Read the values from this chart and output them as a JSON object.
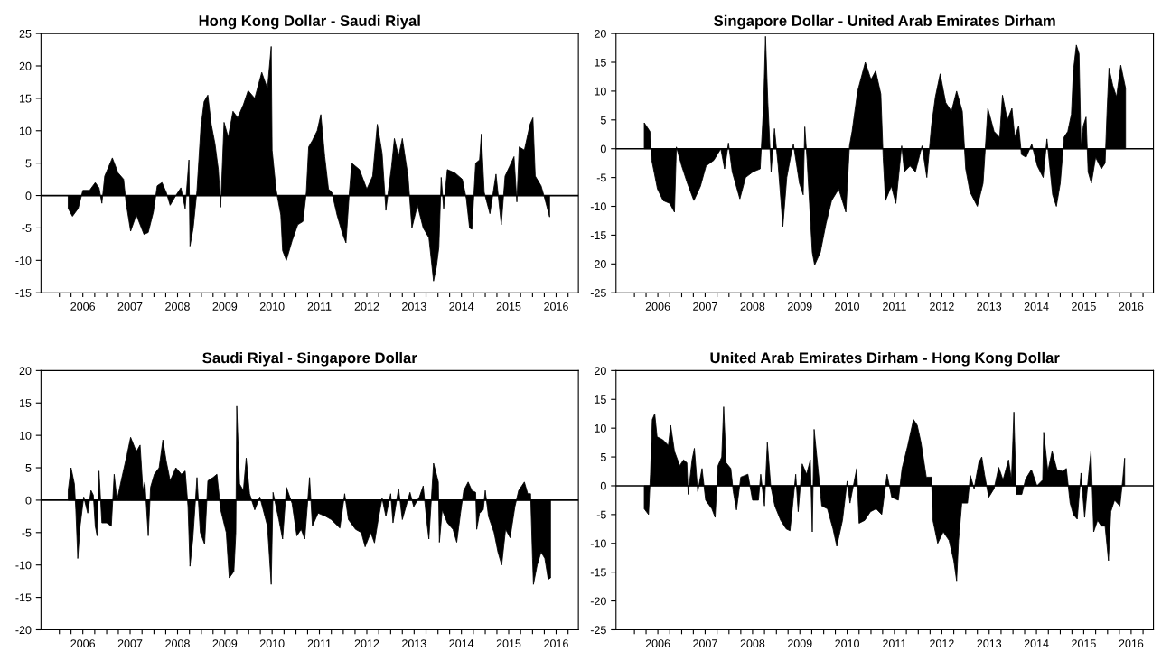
{
  "chart_data": [
    {
      "type": "area",
      "title": "Hong Kong Dollar - Saudi Riyal",
      "xlim": [
        "2005-08-12",
        "2016-12-20"
      ],
      "xticks": [
        {
          "value": "2006-01-01",
          "label": null
        },
        {
          "value": "2006-04-01",
          "label": null
        },
        {
          "value": "2006-07-01",
          "label": "2006"
        },
        {
          "value": "2006-10-01",
          "label": null
        },
        {
          "value": "2007-01-01",
          "label": null
        },
        {
          "value": "2007-04-01",
          "label": null
        },
        {
          "value": "2007-07-01",
          "label": "2007"
        },
        {
          "value": "2007-10-01",
          "label": null
        },
        {
          "value": "2008-01-01",
          "label": null
        },
        {
          "value": "2008-04-01",
          "label": null
        },
        {
          "value": "2008-07-01",
          "label": "2008"
        },
        {
          "value": "2008-10-01",
          "label": null
        },
        {
          "value": "2009-01-01",
          "label": null
        },
        {
          "value": "2009-04-01",
          "label": null
        },
        {
          "value": "2009-07-01",
          "label": "2009"
        },
        {
          "value": "2009-10-01",
          "label": null
        },
        {
          "value": "2010-01-01",
          "label": null
        },
        {
          "value": "2010-04-01",
          "label": null
        },
        {
          "value": "2010-07-01",
          "label": "2010"
        },
        {
          "value": "2010-10-01",
          "label": null
        },
        {
          "value": "2011-01-01",
          "label": null
        },
        {
          "value": "2011-04-01",
          "label": null
        },
        {
          "value": "2011-07-01",
          "label": "2011"
        },
        {
          "value": "2011-10-01",
          "label": null
        },
        {
          "value": "2012-01-01",
          "label": null
        },
        {
          "value": "2012-04-01",
          "label": null
        },
        {
          "value": "2012-07-01",
          "label": "2012"
        },
        {
          "value": "2012-10-01",
          "label": null
        },
        {
          "value": "2013-01-01",
          "label": null
        },
        {
          "value": "2013-04-01",
          "label": null
        },
        {
          "value": "2013-07-01",
          "label": "2013"
        },
        {
          "value": "2013-10-01",
          "label": null
        },
        {
          "value": "2014-01-01",
          "label": null
        },
        {
          "value": "2014-04-01",
          "label": null
        },
        {
          "value": "2014-07-01",
          "label": "2014"
        },
        {
          "value": "2014-10-01",
          "label": null
        },
        {
          "value": "2015-01-01",
          "label": null
        },
        {
          "value": "2015-04-01",
          "label": null
        },
        {
          "value": "2015-07-01",
          "label": "2015"
        },
        {
          "value": "2015-10-01",
          "label": null
        },
        {
          "value": "2016-01-01",
          "label": null
        },
        {
          "value": "2016-04-01",
          "label": null
        },
        {
          "value": "2016-07-01",
          "label": "2016"
        },
        {
          "value": "2016-10-01",
          "label": null
        }
      ],
      "ylim": [
        -15,
        25
      ],
      "yticks": [
        -15,
        -10,
        -5,
        0,
        5,
        10,
        15,
        20,
        25
      ],
      "grid": false,
      "legend": false,
      "ref_lines": [
        {
          "axis": "y",
          "value": 0
        }
      ],
      "series": [
        {
          "color": "#000000",
          "x": [
            "2006-03-10",
            "2006-04-12",
            "2006-05-26",
            "2006-07-01",
            "2006-08-22",
            "2006-10-05",
            "2006-11-03",
            "2006-11-25",
            "2006-12-17",
            "2007-02-14",
            "2007-03-30",
            "2007-05-12",
            "2007-05-30",
            "2007-07-05",
            "2007-08-18",
            "2007-10-16",
            "2007-11-18",
            "2007-12-28",
            "2008-01-26",
            "2008-03-03",
            "2008-04-05",
            "2008-05-05",
            "2008-06-18",
            "2008-07-27",
            "2008-08-29",
            "2008-09-27",
            "2008-10-05",
            "2008-10-30",
            "2008-11-28",
            "2008-12-28",
            "2009-01-22",
            "2009-02-20",
            "2009-03-18",
            "2009-04-16",
            "2009-05-12",
            "2009-05-30",
            "2009-06-25",
            "2009-07-27",
            "2009-09-02",
            "2009-10-08",
            "2009-11-21",
            "2009-12-28",
            "2010-02-17",
            "2010-04-12",
            "2010-05-26",
            "2010-06-24",
            "2010-07-01",
            "2010-07-31",
            "2010-09-06",
            "2010-09-20",
            "2010-10-19",
            "2010-12-02",
            "2011-01-15",
            "2011-02-24",
            "2011-03-22",
            "2011-04-09",
            "2011-05-08",
            "2011-06-14",
            "2011-07-12",
            "2011-08-11",
            "2011-09-09",
            "2011-10-05",
            "2011-11-14",
            "2011-12-28",
            "2012-01-22",
            "2012-02-17",
            "2012-03-07",
            "2012-05-05",
            "2012-07-01",
            "2012-08-15",
            "2012-09-20",
            "2012-10-27",
            "2012-11-25",
            "2013-01-08",
            "2013-01-30",
            "2013-03-03",
            "2013-04-01",
            "2013-05-15",
            "2013-06-14",
            "2013-07-27",
            "2013-09-09",
            "2013-10-23",
            "2013-11-28",
            "2013-12-20",
            "2014-01-08",
            "2014-01-26",
            "2014-02-14",
            "2014-03-14",
            "2014-05-12",
            "2014-07-08",
            "2014-08-08",
            "2014-09-02",
            "2014-09-20",
            "2014-10-19",
            "2014-11-18",
            "2014-12-02",
            "2014-12-24",
            "2015-02-06",
            "2015-03-25",
            "2015-05-05",
            "2015-06-03",
            "2015-07-08",
            "2015-08-11",
            "2015-09-02",
            "2015-09-20",
            "2015-10-30",
            "2015-12-13",
            "2016-01-04",
            "2016-01-22",
            "2016-03-07",
            "2016-04-05",
            "2016-05-12"
          ],
          "values": [
            -2,
            -3.2,
            -2,
            0.8,
            0.8,
            2,
            1.2,
            -1.2,
            3,
            5.8,
            3.5,
            2.5,
            -1,
            -5.5,
            -3,
            -6,
            -5.7,
            -2.5,
            1.5,
            2,
            0.5,
            -1.5,
            0,
            1.2,
            -2,
            5.5,
            -7.8,
            -5,
            0.8,
            10.5,
            14.5,
            15.5,
            11,
            8,
            4,
            -1.8,
            11.3,
            9,
            13,
            12,
            14,
            16.2,
            15,
            19,
            16.5,
            23,
            7,
            1,
            -3,
            -8.5,
            -10,
            -7,
            -4.5,
            -4,
            0.5,
            7.5,
            8.5,
            10,
            12.5,
            6,
            1,
            0.5,
            -3,
            -6,
            -7.3,
            0.5,
            5,
            4,
            1,
            3,
            11,
            6.5,
            -2.3,
            4.5,
            8.8,
            6,
            8.8,
            3,
            -5,
            -1.5,
            -5,
            -6.5,
            -13.2,
            -11,
            -8,
            2.8,
            -2,
            4,
            3.5,
            2.5,
            -0.5,
            -5,
            -5.2,
            5,
            5.5,
            9.5,
            0.5,
            -2.8,
            3.3,
            -4.5,
            3,
            4.5,
            6,
            -1,
            7.5,
            7,
            11,
            12,
            3,
            1.5,
            -0.5,
            -3.3
          ]
        }
      ]
    },
    {
      "type": "area",
      "title": "Singapore Dollar - United Arab Emirates Dirham",
      "xlim": [
        "2005-08-12",
        "2016-12-20"
      ],
      "xticks": [
        {
          "value": "2006-01-01",
          "label": null
        },
        {
          "value": "2006-04-01",
          "label": null
        },
        {
          "value": "2006-07-01",
          "label": "2006"
        },
        {
          "value": "2006-10-01",
          "label": null
        },
        {
          "value": "2007-01-01",
          "label": null
        },
        {
          "value": "2007-04-01",
          "label": null
        },
        {
          "value": "2007-07-01",
          "label": "2007"
        },
        {
          "value": "2007-10-01",
          "label": null
        },
        {
          "value": "2008-01-01",
          "label": null
        },
        {
          "value": "2008-04-01",
          "label": null
        },
        {
          "value": "2008-07-01",
          "label": "2008"
        },
        {
          "value": "2008-10-01",
          "label": null
        },
        {
          "value": "2009-01-01",
          "label": null
        },
        {
          "value": "2009-04-01",
          "label": null
        },
        {
          "value": "2009-07-01",
          "label": "2009"
        },
        {
          "value": "2009-10-01",
          "label": null
        },
        {
          "value": "2010-01-01",
          "label": null
        },
        {
          "value": "2010-04-01",
          "label": null
        },
        {
          "value": "2010-07-01",
          "label": "2010"
        },
        {
          "value": "2010-10-01",
          "label": null
        },
        {
          "value": "2011-01-01",
          "label": null
        },
        {
          "value": "2011-04-01",
          "label": null
        },
        {
          "value": "2011-07-01",
          "label": "2011"
        },
        {
          "value": "2011-10-01",
          "label": null
        },
        {
          "value": "2012-01-01",
          "label": null
        },
        {
          "value": "2012-04-01",
          "label": null
        },
        {
          "value": "2012-07-01",
          "label": "2012"
        },
        {
          "value": "2012-10-01",
          "label": null
        },
        {
          "value": "2013-01-01",
          "label": null
        },
        {
          "value": "2013-04-01",
          "label": null
        },
        {
          "value": "2013-07-01",
          "label": "2013"
        },
        {
          "value": "2013-10-01",
          "label": null
        },
        {
          "value": "2014-01-01",
          "label": null
        },
        {
          "value": "2014-04-01",
          "label": null
        },
        {
          "value": "2014-07-01",
          "label": "2014"
        },
        {
          "value": "2014-10-01",
          "label": null
        },
        {
          "value": "2015-01-01",
          "label": null
        },
        {
          "value": "2015-04-01",
          "label": null
        },
        {
          "value": "2015-07-01",
          "label": "2015"
        },
        {
          "value": "2015-10-01",
          "label": null
        },
        {
          "value": "2016-01-01",
          "label": null
        },
        {
          "value": "2016-04-01",
          "label": null
        },
        {
          "value": "2016-07-01",
          "label": "2016"
        },
        {
          "value": "2016-10-01",
          "label": null
        }
      ],
      "ylim": [
        -25,
        20
      ],
      "yticks": [
        -25,
        -20,
        -15,
        -10,
        -5,
        0,
        5,
        10,
        15,
        20
      ],
      "grid": false,
      "legend": false,
      "ref_lines": [
        {
          "axis": "y",
          "value": 0
        }
      ],
      "series": [
        {
          "color": "#000000",
          "x": [
            "2006-03-18",
            "2006-05-01",
            "2006-05-15",
            "2006-06-28",
            "2006-08-11",
            "2006-10-01",
            "2006-11-06",
            "2006-11-21",
            "2007-01-01",
            "2007-02-14",
            "2007-04-05",
            "2007-05-26",
            "2007-07-08",
            "2007-09-06",
            "2007-10-30",
            "2007-11-28",
            "2007-12-28",
            "2008-01-26",
            "2008-03-25",
            "2008-05-08",
            "2008-07-05",
            "2008-08-29",
            "2008-09-24",
            "2008-10-09",
            "2008-10-27",
            "2008-11-21",
            "2008-12-17",
            "2009-01-15",
            "2009-02-20",
            "2009-03-22",
            "2009-04-20",
            "2009-05-12",
            "2009-06-28",
            "2009-07-27",
            "2009-08-08",
            "2009-08-26",
            "2009-10-05",
            "2009-10-23",
            "2009-12-06",
            "2010-01-19",
            "2010-03-03",
            "2010-04-27",
            "2010-06-21",
            "2010-07-19",
            "2010-08-08",
            "2010-09-20",
            "2010-11-18",
            "2011-01-01",
            "2011-02-06",
            "2011-03-18",
            "2011-04-05",
            "2011-04-23",
            "2011-06-07",
            "2011-07-12",
            "2011-08-26",
            "2011-09-16",
            "2011-10-30",
            "2011-12-10",
            "2012-01-30",
            "2012-03-07",
            "2012-04-12",
            "2012-05-12",
            "2012-06-18",
            "2012-07-31",
            "2012-09-13",
            "2012-10-23",
            "2012-12-06",
            "2013-01-01",
            "2013-02-03",
            "2013-04-01",
            "2013-05-15",
            "2013-06-21",
            "2013-08-08",
            "2013-09-20",
            "2013-10-12",
            "2013-11-18",
            "2013-12-24",
            "2014-01-15",
            "2014-02-14",
            "2014-03-07",
            "2014-04-12",
            "2014-05-26",
            "2014-07-08",
            "2014-08-22",
            "2014-09-20",
            "2014-11-03",
            "2014-12-02",
            "2015-01-01",
            "2015-01-30",
            "2015-02-28",
            "2015-03-28",
            "2015-04-12",
            "2015-05-05",
            "2015-05-26",
            "2015-06-10",
            "2015-06-28",
            "2015-07-19",
            "2015-08-04",
            "2015-08-29",
            "2015-10-01",
            "2015-11-14",
            "2015-12-13",
            "2015-12-28",
            "2016-01-12",
            "2016-02-10",
            "2016-03-10",
            "2016-04-12",
            "2016-05-19"
          ],
          "values": [
            4.5,
            3,
            -2,
            -7,
            -9,
            -9.5,
            -11,
            0.3,
            -3,
            -6,
            -9,
            -6.5,
            -3,
            -2,
            0,
            -3.5,
            1,
            -4,
            -8.7,
            -5,
            -4,
            -3.5,
            7.5,
            19.5,
            8,
            -4,
            3.5,
            -3,
            -13.5,
            -5,
            -1.5,
            0.8,
            -6,
            -8,
            3.8,
            -2,
            -18,
            -20.2,
            -18,
            -13,
            -9,
            -7,
            -11,
            0.5,
            3,
            10,
            15,
            12,
            13.5,
            9.5,
            -1.5,
            -9,
            -6.5,
            -9.5,
            0.5,
            -4,
            -3,
            -4,
            0.5,
            -5,
            4,
            9,
            13,
            8,
            6.5,
            10,
            6.5,
            -3.5,
            -7.5,
            -10,
            -6,
            7,
            3,
            2,
            9.3,
            5,
            7,
            2,
            4,
            -1,
            -1.5,
            0.8,
            -3,
            -5,
            1.7,
            -8,
            -10,
            -6,
            2,
            3,
            6,
            13.5,
            18,
            16.5,
            0.5,
            4,
            5.5,
            -4,
            -6,
            -1.5,
            -3.5,
            -2.5,
            6.5,
            14,
            11,
            9,
            14.5,
            10.5
          ]
        }
      ]
    },
    {
      "type": "area",
      "title": "Saudi Riyal - Singapore Dollar",
      "xlim": [
        "2005-08-12",
        "2016-12-20"
      ],
      "xticks": [
        {
          "value": "2006-01-01",
          "label": null
        },
        {
          "value": "2006-04-01",
          "label": null
        },
        {
          "value": "2006-07-01",
          "label": "2006"
        },
        {
          "value": "2006-10-01",
          "label": null
        },
        {
          "value": "2007-01-01",
          "label": null
        },
        {
          "value": "2007-04-01",
          "label": null
        },
        {
          "value": "2007-07-01",
          "label": "2007"
        },
        {
          "value": "2007-10-01",
          "label": null
        },
        {
          "value": "2008-01-01",
          "label": null
        },
        {
          "value": "2008-04-01",
          "label": null
        },
        {
          "value": "2008-07-01",
          "label": "2008"
        },
        {
          "value": "2008-10-01",
          "label": null
        },
        {
          "value": "2009-01-01",
          "label": null
        },
        {
          "value": "2009-04-01",
          "label": null
        },
        {
          "value": "2009-07-01",
          "label": "2009"
        },
        {
          "value": "2009-10-01",
          "label": null
        },
        {
          "value": "2010-01-01",
          "label": null
        },
        {
          "value": "2010-04-01",
          "label": null
        },
        {
          "value": "2010-07-01",
          "label": "2010"
        },
        {
          "value": "2010-10-01",
          "label": null
        },
        {
          "value": "2011-01-01",
          "label": null
        },
        {
          "value": "2011-04-01",
          "label": null
        },
        {
          "value": "2011-07-01",
          "label": "2011"
        },
        {
          "value": "2011-10-01",
          "label": null
        },
        {
          "value": "2012-01-01",
          "label": null
        },
        {
          "value": "2012-04-01",
          "label": null
        },
        {
          "value": "2012-07-01",
          "label": "2012"
        },
        {
          "value": "2012-10-01",
          "label": null
        },
        {
          "value": "2013-01-01",
          "label": null
        },
        {
          "value": "2013-04-01",
          "label": null
        },
        {
          "value": "2013-07-01",
          "label": "2013"
        },
        {
          "value": "2013-10-01",
          "label": null
        },
        {
          "value": "2014-01-01",
          "label": null
        },
        {
          "value": "2014-04-01",
          "label": null
        },
        {
          "value": "2014-07-01",
          "label": "2014"
        },
        {
          "value": "2014-10-01",
          "label": null
        },
        {
          "value": "2015-01-01",
          "label": null
        },
        {
          "value": "2015-04-01",
          "label": null
        },
        {
          "value": "2015-07-01",
          "label": "2015"
        },
        {
          "value": "2015-10-01",
          "label": null
        },
        {
          "value": "2016-01-01",
          "label": null
        },
        {
          "value": "2016-04-01",
          "label": null
        },
        {
          "value": "2016-07-01",
          "label": "2016"
        },
        {
          "value": "2016-10-01",
          "label": null
        }
      ],
      "ylim": [
        -20,
        20
      ],
      "yticks": [
        -20,
        -15,
        -10,
        -5,
        0,
        5,
        10,
        15,
        20
      ],
      "grid": false,
      "legend": false,
      "ref_lines": [
        {
          "axis": "y",
          "value": 0
        }
      ],
      "series": [
        {
          "color": "#000000",
          "x": [
            "2006-03-10",
            "2006-04-01",
            "2006-04-27",
            "2006-05-08",
            "2006-05-23",
            "2006-06-10",
            "2006-07-08",
            "2006-08-08",
            "2006-09-02",
            "2006-09-20",
            "2006-10-05",
            "2006-10-19",
            "2006-11-03",
            "2006-11-25",
            "2007-01-01",
            "2007-02-06",
            "2007-02-28",
            "2007-03-22",
            "2007-04-23",
            "2007-06-07",
            "2007-07-05",
            "2007-08-18",
            "2007-09-16",
            "2007-10-08",
            "2007-10-23",
            "2007-11-18",
            "2007-12-06",
            "2008-01-04",
            "2008-02-10",
            "2008-03-10",
            "2008-04-05",
            "2008-05-05",
            "2008-06-18",
            "2008-07-31",
            "2008-08-29",
            "2008-09-20",
            "2008-10-05",
            "2008-10-27",
            "2008-11-28",
            "2008-12-24",
            "2009-01-26",
            "2009-02-20",
            "2009-04-01",
            "2009-05-01",
            "2009-05-30",
            "2009-07-12",
            "2009-08-04",
            "2009-09-09",
            "2009-09-24",
            "2009-10-01",
            "2009-10-23",
            "2009-11-21",
            "2009-12-13",
            "2010-01-08",
            "2010-02-17",
            "2010-03-28",
            "2010-05-26",
            "2010-06-24",
            "2010-07-08",
            "2010-08-22",
            "2010-09-20",
            "2010-10-19",
            "2010-12-02",
            "2011-01-08",
            "2011-02-10",
            "2011-03-10",
            "2011-04-16",
            "2011-05-08",
            "2011-06-21",
            "2011-08-18",
            "2011-10-01",
            "2011-12-06",
            "2012-01-12",
            "2012-02-10",
            "2012-04-05",
            "2012-05-19",
            "2012-06-18",
            "2012-07-31",
            "2012-08-29",
            "2012-09-27",
            "2012-10-27",
            "2012-11-25",
            "2013-01-01",
            "2013-01-19",
            "2013-03-03",
            "2013-04-01",
            "2013-05-30",
            "2013-06-28",
            "2013-08-11",
            "2013-09-09",
            "2013-10-08",
            "2013-10-23",
            "2013-11-28",
            "2014-01-04",
            "2014-01-12",
            "2014-02-03",
            "2014-03-14",
            "2014-04-27",
            "2014-05-26",
            "2014-06-24",
            "2014-07-19",
            "2014-08-22",
            "2014-09-20",
            "2014-10-19",
            "2014-10-27",
            "2014-11-18",
            "2014-12-17",
            "2015-01-01",
            "2015-01-26",
            "2015-03-10",
            "2015-04-09",
            "2015-05-08",
            "2015-06-07",
            "2015-07-12",
            "2015-08-18",
            "2015-09-16",
            "2015-10-30",
            "2015-11-25",
            "2015-12-17",
            "2016-01-01",
            "2016-01-08",
            "2016-02-06",
            "2016-03-07",
            "2016-04-05",
            "2016-05-01",
            "2016-05-19"
          ],
          "values": [
            1.5,
            5,
            2.5,
            -1.5,
            -9,
            -4,
            0.5,
            -2,
            1.5,
            0.8,
            -4,
            -5.5,
            4.5,
            -3.5,
            -3.5,
            -4,
            4,
            0,
            3,
            7,
            9.7,
            7.5,
            8.5,
            1.5,
            2.8,
            -5.5,
            2,
            4,
            5,
            9.3,
            6,
            3,
            5,
            4,
            4.5,
            -1,
            -10.2,
            -6,
            3.5,
            -5,
            -6.8,
            3,
            3.5,
            4,
            -1.5,
            -5,
            -12,
            -11,
            -5,
            14.5,
            2.5,
            1.5,
            6.5,
            1,
            -1.5,
            0.5,
            -4,
            -13,
            1.2,
            -3,
            -6,
            2,
            -0.5,
            -5.5,
            -4.5,
            -6,
            3.5,
            -4,
            -2,
            -2.5,
            -3,
            -4.3,
            1,
            -3,
            -4.5,
            -5,
            -7.2,
            -5,
            -6.6,
            -3,
            0.3,
            -2.5,
            1,
            -3.5,
            1.8,
            -3,
            1.2,
            -1,
            0.5,
            2.2,
            -3.5,
            -6,
            5.7,
            2.8,
            -6.5,
            -1.5,
            -3.5,
            -4.5,
            -6.5,
            -2,
            1.5,
            2.8,
            1.5,
            1.2,
            -4.5,
            -2,
            -1.5,
            1.5,
            -2.5,
            -5,
            -8,
            -10,
            -4.5,
            -5.8,
            -1,
            1.5,
            2.8,
            1,
            1,
            -9,
            -13,
            -10,
            -8,
            -9,
            -12.2,
            -12
          ]
        }
      ]
    },
    {
      "type": "area",
      "title": "United Arab Emirates Dirham - Hong Kong Dollar",
      "xlim": [
        "2005-08-12",
        "2016-12-20"
      ],
      "xticks": [
        {
          "value": "2006-01-01",
          "label": null
        },
        {
          "value": "2006-04-01",
          "label": null
        },
        {
          "value": "2006-07-01",
          "label": "2006"
        },
        {
          "value": "2006-10-01",
          "label": null
        },
        {
          "value": "2007-01-01",
          "label": null
        },
        {
          "value": "2007-04-01",
          "label": null
        },
        {
          "value": "2007-07-01",
          "label": "2007"
        },
        {
          "value": "2007-10-01",
          "label": null
        },
        {
          "value": "2008-01-01",
          "label": null
        },
        {
          "value": "2008-04-01",
          "label": null
        },
        {
          "value": "2008-07-01",
          "label": "2008"
        },
        {
          "value": "2008-10-01",
          "label": null
        },
        {
          "value": "2009-01-01",
          "label": null
        },
        {
          "value": "2009-04-01",
          "label": null
        },
        {
          "value": "2009-07-01",
          "label": "2009"
        },
        {
          "value": "2009-10-01",
          "label": null
        },
        {
          "value": "2010-01-01",
          "label": null
        },
        {
          "value": "2010-04-01",
          "label": null
        },
        {
          "value": "2010-07-01",
          "label": "2010"
        },
        {
          "value": "2010-10-01",
          "label": null
        },
        {
          "value": "2011-01-01",
          "label": null
        },
        {
          "value": "2011-04-01",
          "label": null
        },
        {
          "value": "2011-07-01",
          "label": "2011"
        },
        {
          "value": "2011-10-01",
          "label": null
        },
        {
          "value": "2012-01-01",
          "label": null
        },
        {
          "value": "2012-04-01",
          "label": null
        },
        {
          "value": "2012-07-01",
          "label": "2012"
        },
        {
          "value": "2012-10-01",
          "label": null
        },
        {
          "value": "2013-01-01",
          "label": null
        },
        {
          "value": "2013-04-01",
          "label": null
        },
        {
          "value": "2013-07-01",
          "label": "2013"
        },
        {
          "value": "2013-10-01",
          "label": null
        },
        {
          "value": "2014-01-01",
          "label": null
        },
        {
          "value": "2014-04-01",
          "label": null
        },
        {
          "value": "2014-07-01",
          "label": "2014"
        },
        {
          "value": "2014-10-01",
          "label": null
        },
        {
          "value": "2015-01-01",
          "label": null
        },
        {
          "value": "2015-04-01",
          "label": null
        },
        {
          "value": "2015-07-01",
          "label": "2015"
        },
        {
          "value": "2015-10-01",
          "label": null
        },
        {
          "value": "2016-01-01",
          "label": null
        },
        {
          "value": "2016-04-01",
          "label": null
        },
        {
          "value": "2016-07-01",
          "label": "2016"
        },
        {
          "value": "2016-10-01",
          "label": null
        }
      ],
      "ylim": [
        -25,
        20
      ],
      "yticks": [
        -25,
        -20,
        -15,
        -10,
        -5,
        0,
        5,
        10,
        15,
        20
      ],
      "grid": false,
      "legend": false,
      "ref_lines": [
        {
          "axis": "y",
          "value": 0
        }
      ],
      "series": [
        {
          "color": "#000000",
          "x": [
            "2006-03-18",
            "2006-04-20",
            "2006-05-05",
            "2006-05-19",
            "2006-06-07",
            "2006-06-25",
            "2006-08-08",
            "2006-09-20",
            "2006-10-08",
            "2006-11-06",
            "2006-12-17",
            "2007-01-15",
            "2007-02-10",
            "2007-02-20",
            "2007-03-22",
            "2007-04-09",
            "2007-05-05",
            "2007-06-07",
            "2007-07-05",
            "2007-08-22",
            "2007-09-16",
            "2007-10-08",
            "2007-11-06",
            "2007-11-21",
            "2007-12-10",
            "2008-01-15",
            "2008-02-03",
            "2008-02-28",
            "2008-04-01",
            "2008-05-26",
            "2008-07-01",
            "2008-08-15",
            "2008-09-02",
            "2008-10-01",
            "2008-10-23",
            "2008-11-18",
            "2008-12-20",
            "2009-02-03",
            "2009-03-18",
            "2009-04-16",
            "2009-05-08",
            "2009-05-30",
            "2009-06-18",
            "2009-07-19",
            "2009-08-22",
            "2009-09-20",
            "2009-10-05",
            "2009-10-19",
            "2009-11-18",
            "2009-12-17",
            "2010-01-30",
            "2010-03-14",
            "2010-04-12",
            "2010-05-26",
            "2010-07-01",
            "2010-07-23",
            "2010-09-13",
            "2010-10-01",
            "2010-11-14",
            "2010-12-28",
            "2011-02-10",
            "2011-03-25",
            "2011-05-05",
            "2011-06-10",
            "2011-07-31",
            "2011-08-29",
            "2011-10-12",
            "2011-11-25",
            "2011-12-24",
            "2012-01-22",
            "2012-03-03",
            "2012-04-12",
            "2012-04-23",
            "2012-05-30",
            "2012-07-12",
            "2012-08-26",
            "2012-10-01",
            "2012-10-23",
            "2012-11-07",
            "2012-12-02",
            "2013-01-15",
            "2013-02-06",
            "2013-03-07",
            "2013-04-12",
            "2013-05-05",
            "2013-05-26",
            "2013-06-28",
            "2013-08-08",
            "2013-09-13",
            "2013-10-16",
            "2013-11-28",
            "2013-12-20",
            "2014-01-08",
            "2014-01-26",
            "2014-03-10",
            "2014-04-09",
            "2014-05-23",
            "2014-07-05",
            "2014-08-18",
            "2014-08-26",
            "2014-09-27",
            "2014-10-30",
            "2014-12-06",
            "2015-01-19",
            "2015-02-17",
            "2015-03-18",
            "2015-04-12",
            "2015-05-12",
            "2015-06-10",
            "2015-07-08",
            "2015-08-08",
            "2015-08-26",
            "2015-09-16",
            "2015-10-16",
            "2015-11-14",
            "2015-12-13",
            "2016-01-08",
            "2016-01-26",
            "2016-02-24",
            "2016-04-05",
            "2016-04-27",
            "2016-05-12"
          ],
          "values": [
            -4,
            -5,
            2,
            11.5,
            12.5,
            8.5,
            8,
            7,
            10.5,
            6,
            3.5,
            4.5,
            4,
            -1.5,
            4.5,
            6.5,
            -1,
            3,
            -2.5,
            -4,
            -5.5,
            3.5,
            5,
            13.7,
            4,
            3,
            -1,
            -4.2,
            1.5,
            2,
            -2.5,
            -2.5,
            2,
            -3.5,
            7.5,
            0,
            -3.5,
            -6,
            -7.5,
            -7.8,
            -3,
            2,
            -4.5,
            3.8,
            2,
            4.5,
            -8,
            9.8,
            3,
            -3.5,
            -4,
            -7.5,
            -10.5,
            -6,
            0.8,
            -3,
            3,
            -6.5,
            -6,
            -4.5,
            -4,
            -5,
            2,
            -2,
            -2.5,
            3,
            7,
            11.5,
            10.5,
            7.5,
            1.5,
            1.5,
            -6,
            -10,
            -8,
            -9.5,
            -13,
            -16.5,
            -9.5,
            -3,
            -3,
            1.8,
            -0.5,
            4,
            5,
            2,
            -2,
            -0.5,
            3.2,
            1,
            4.5,
            1,
            12.8,
            -1.5,
            -1.5,
            1.2,
            2.8,
            0,
            1,
            9.3,
            2.5,
            6,
            2.8,
            2.5,
            3,
            -3,
            -5,
            -5.8,
            2.2,
            -5.5,
            2,
            6,
            -8,
            -6,
            -7,
            -7,
            -13,
            -4.5,
            -2.5,
            -3.5,
            1,
            4.8
          ]
        }
      ]
    }
  ]
}
